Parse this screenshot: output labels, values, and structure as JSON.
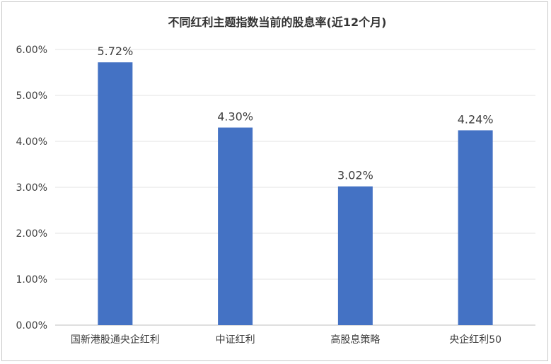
{
  "chart_data": {
    "type": "bar",
    "title": "不同红利主题指数当前的股息率(近12个月)",
    "categories": [
      "国新港股通央企红利",
      "中证红利",
      "高股息策略",
      "央企红利50"
    ],
    "values": [
      5.72,
      4.3,
      3.02,
      4.24
    ],
    "value_labels": [
      "5.72%",
      "4.30%",
      "3.02%",
      "4.24%"
    ],
    "ylim": [
      0,
      6
    ],
    "yticks": [
      0,
      1,
      2,
      3,
      4,
      5,
      6
    ],
    "ytick_labels": [
      "0.00%",
      "1.00%",
      "2.00%",
      "3.00%",
      "4.00%",
      "5.00%",
      "6.00%"
    ],
    "xlabel": "",
    "ylabel": "",
    "grid": true,
    "bar_color": "#4472C4"
  }
}
